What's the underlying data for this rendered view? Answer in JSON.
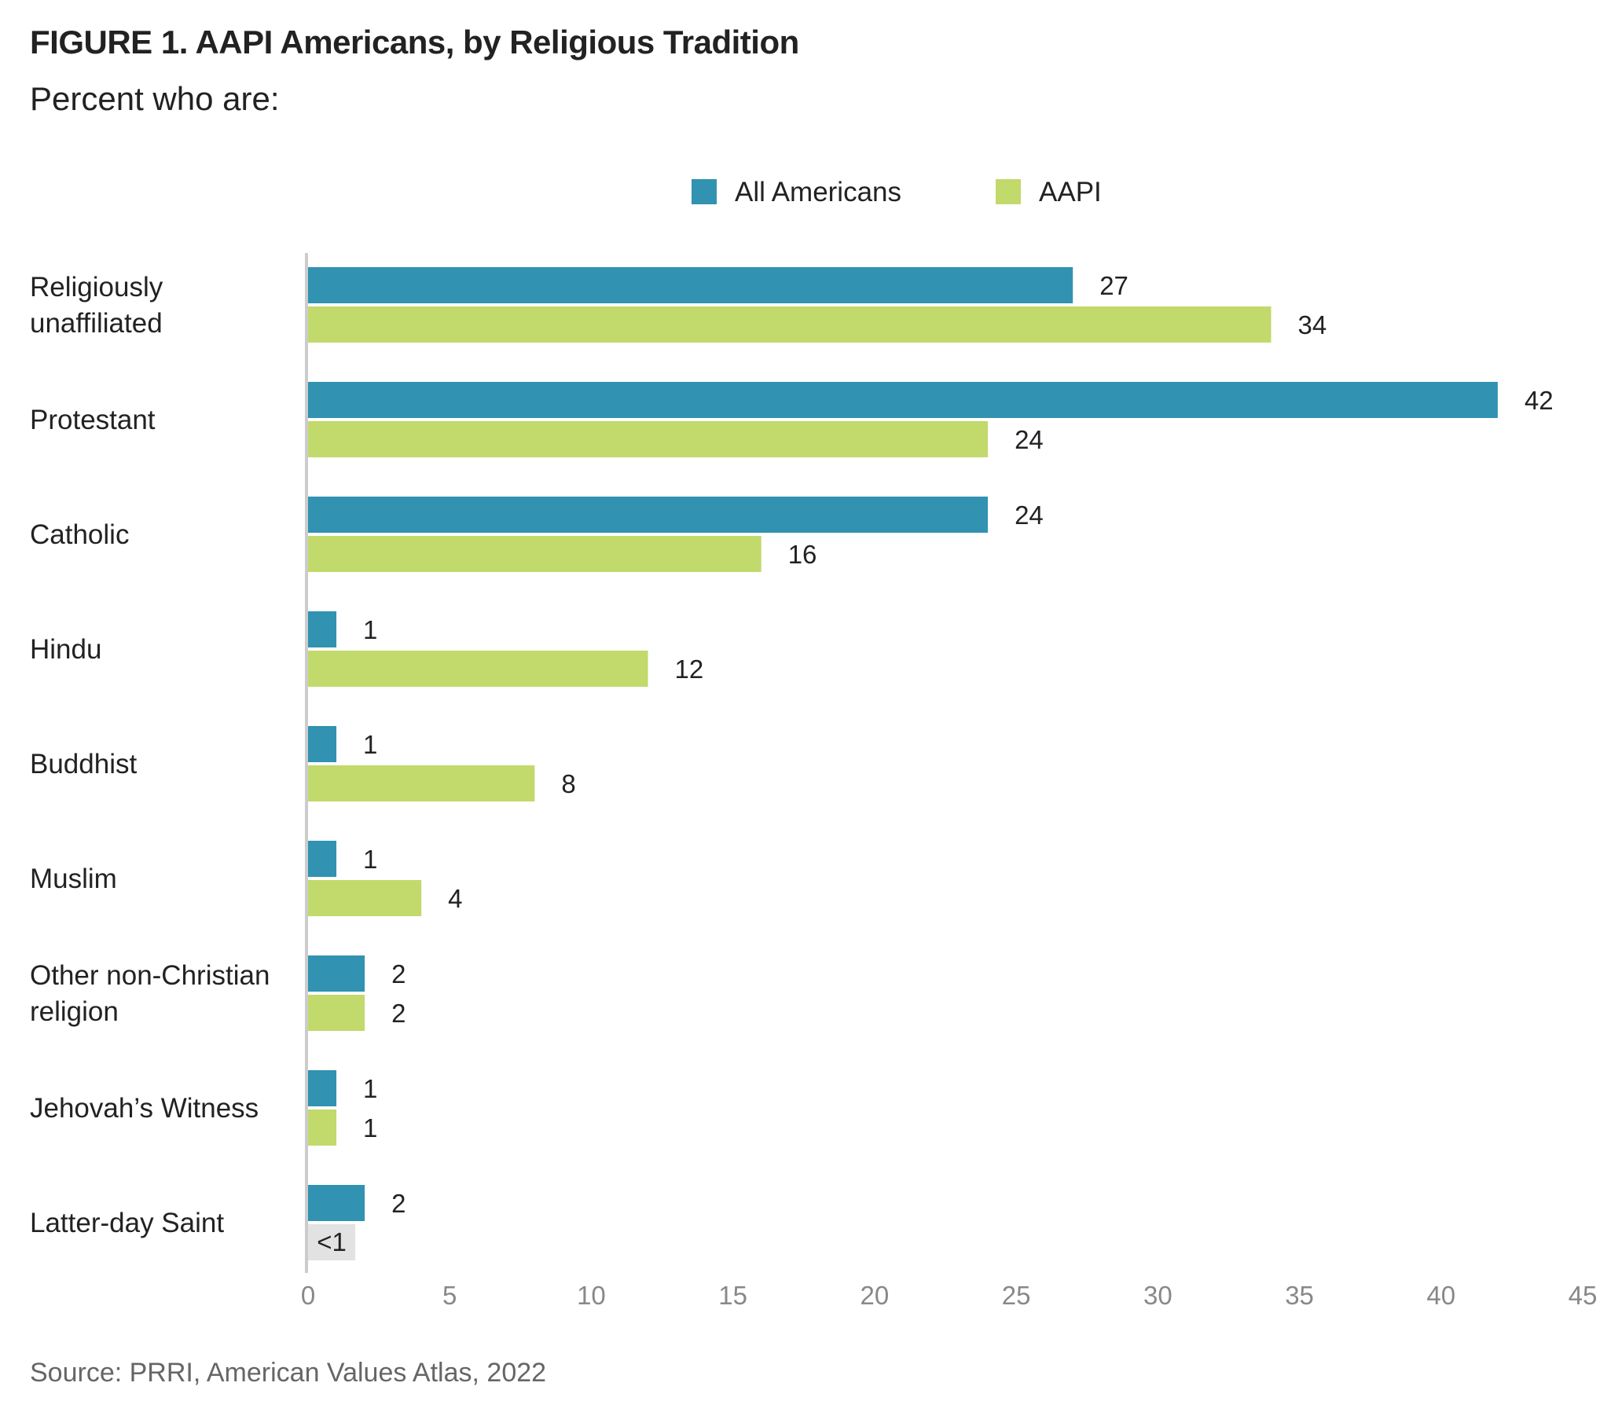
{
  "header": {
    "title": "FIGURE 1.  AAPI Americans, by Religious Tradition",
    "subtitle": "Percent who are:"
  },
  "footer": {
    "source": "Source: PRRI, American Values Atlas, 2022"
  },
  "chart_data": {
    "type": "bar",
    "orientation": "horizontal",
    "title": "FIGURE 1.  AAPI Americans, by Religious Tradition",
    "subtitle": "Percent who are:",
    "xlim": [
      0,
      45
    ],
    "xticks": [
      0,
      5,
      10,
      15,
      20,
      25,
      30,
      35,
      40,
      45
    ],
    "legend_position": "top-center",
    "grid": false,
    "categories": [
      [
        "Religiously",
        "unaffiliated"
      ],
      [
        "Protestant"
      ],
      [
        "Catholic"
      ],
      [
        "Hindu"
      ],
      [
        "Buddhist"
      ],
      [
        "Muslim"
      ],
      [
        "Other non-Christian",
        "religion"
      ],
      [
        "Jehovah’s Witness"
      ],
      [
        "Latter-day Saint"
      ]
    ],
    "series": [
      {
        "name": "All Americans",
        "color": "#3192b2",
        "values": [
          27,
          42,
          24,
          1,
          1,
          1,
          2,
          1,
          2
        ],
        "labels": [
          "27",
          "42",
          "24",
          "1",
          "1",
          "1",
          "2",
          "1",
          "2"
        ]
      },
      {
        "name": "AAPI",
        "color": "#c2d96c",
        "values": [
          34,
          24,
          16,
          12,
          8,
          4,
          2,
          1,
          0.5
        ],
        "labels": [
          "34",
          "24",
          "16",
          "12",
          "8",
          "4",
          "2",
          "1",
          "<1"
        ]
      }
    ],
    "special_marks": {
      "less_than_one_color": "#e2e2e2"
    }
  }
}
